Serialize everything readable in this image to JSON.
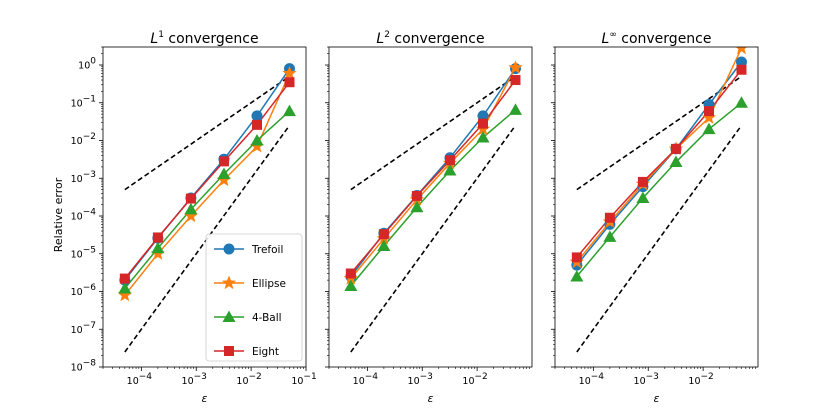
{
  "chart_data": {
    "type": "line",
    "x_scale": "log",
    "y_scale": "log",
    "ylabel": "Relative error",
    "xlabel": "ε",
    "ylim": [
      1e-08,
      3
    ],
    "yticks": [
      "10^-8",
      "10^-7",
      "10^-6",
      "10^-5",
      "10^-4",
      "10^-3",
      "10^-2",
      "10^-1",
      "10^0"
    ],
    "legend": {
      "position": "bottom-right of first panel",
      "entries": [
        "Trefoil",
        "Ellipse",
        "4-Ball",
        "Eight"
      ]
    },
    "colors": {
      "Trefoil": "#1f77b4",
      "Ellipse": "#ff7f0e",
      "4-Ball": "#2ca02c",
      "Eight": "#d62728",
      "reference": "#000000"
    },
    "markers": {
      "Trefoil": "circle",
      "Ellipse": "star",
      "4-Ball": "triangle",
      "Eight": "square"
    },
    "x": [
      5e-05,
      0.0002,
      0.0008,
      0.0032,
      0.0128,
      0.05
    ],
    "panels": [
      {
        "title_base": "L",
        "title_sup": "1",
        "title_rest": " convergence",
        "xlim": [
          2e-05,
          0.1
        ],
        "xticks": [
          "10^-4",
          "10^-3",
          "10^-2",
          "10^-1"
        ],
        "series": [
          {
            "name": "Trefoil",
            "values": [
              2e-06,
              2.6e-05,
              0.0003,
              0.0032,
              0.045,
              0.8
            ]
          },
          {
            "name": "Ellipse",
            "values": [
              8e-07,
              1e-05,
              0.0001,
              0.0009,
              0.007,
              0.6
            ]
          },
          {
            "name": "4-Ball",
            "values": [
              1.2e-06,
              1.4e-05,
              0.00015,
              0.0013,
              0.01,
              0.06
            ]
          },
          {
            "name": "Eight",
            "values": [
              2.2e-06,
              2.7e-05,
              0.00029,
              0.0028,
              0.026,
              0.35
            ]
          }
        ],
        "reference_lines": [
          {
            "label": "slope 1",
            "x": [
              5e-05,
              0.05
            ],
            "y": [
              0.0005,
              0.5
            ]
          },
          {
            "label": "slope 2",
            "x": [
              5e-05,
              0.05
            ],
            "y": [
              2.5e-08,
              0.025
            ]
          }
        ]
      },
      {
        "title_base": "L",
        "title_sup": "2",
        "title_rest": " convergence",
        "xlim": [
          2e-05,
          0.1
        ],
        "xticks": [
          "10^-4",
          "10^-3",
          "10^-2"
        ],
        "series": [
          {
            "name": "Trefoil",
            "values": [
              2.5e-06,
              3.5e-05,
              0.00035,
              0.0035,
              0.045,
              0.8
            ]
          },
          {
            "name": "Ellipse",
            "values": [
              2.2e-06,
              2.5e-05,
              0.00027,
              0.0025,
              0.02,
              0.85
            ]
          },
          {
            "name": "4-Ball",
            "values": [
              1.4e-06,
              1.6e-05,
              0.00017,
              0.0016,
              0.012,
              0.065
            ]
          },
          {
            "name": "Eight",
            "values": [
              3e-06,
              3.3e-05,
              0.00034,
              0.003,
              0.028,
              0.4
            ]
          }
        ],
        "reference_lines": [
          {
            "label": "slope 1",
            "x": [
              5e-05,
              0.05
            ],
            "y": [
              0.0005,
              0.5
            ]
          },
          {
            "label": "slope 2",
            "x": [
              5e-05,
              0.05
            ],
            "y": [
              2.5e-08,
              0.025
            ]
          }
        ]
      },
      {
        "title_base": "L",
        "title_sup": "∞",
        "title_rest": " convergence",
        "xlim": [
          2e-05,
          0.1
        ],
        "xticks": [
          "10^-4",
          "10^-3",
          "10^-2"
        ],
        "series": [
          {
            "name": "Trefoil",
            "values": [
              5e-06,
              6e-05,
              0.0006,
              0.006,
              0.09,
              1.2
            ]
          },
          {
            "name": "Ellipse",
            "values": [
              6e-06,
              7e-05,
              0.0007,
              0.006,
              0.04,
              2.8
            ]
          },
          {
            "name": "4-Ball",
            "values": [
              2.5e-06,
              2.8e-05,
              0.0003,
              0.0027,
              0.02,
              0.1
            ]
          },
          {
            "name": "Eight",
            "values": [
              8e-06,
              9e-05,
              0.0008,
              0.006,
              0.06,
              0.75
            ]
          }
        ],
        "reference_lines": [
          {
            "label": "slope 1",
            "x": [
              5e-05,
              0.05
            ],
            "y": [
              0.0005,
              0.5
            ]
          },
          {
            "label": "slope 2",
            "x": [
              5e-05,
              0.05
            ],
            "y": [
              2.5e-08,
              0.025
            ]
          }
        ]
      }
    ]
  }
}
